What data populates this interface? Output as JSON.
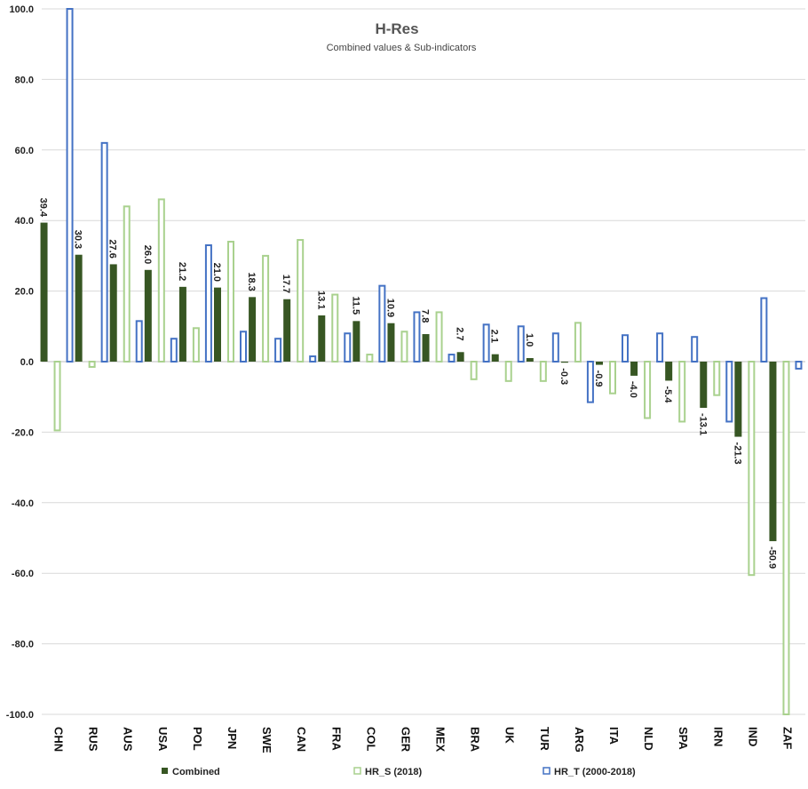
{
  "chart_data": {
    "type": "bar",
    "title": "H-Res",
    "subtitle": "Combined values & Sub-indicators",
    "xlabel": "",
    "ylabel": "",
    "ylim": [
      -100,
      100
    ],
    "yticks": [
      100,
      80,
      60,
      40,
      20,
      0,
      -20,
      -40,
      -60,
      -80,
      -100
    ],
    "ytick_labels": [
      "100.0",
      "80.0",
      "60.0",
      "40.0",
      "20.0",
      "0.0",
      "-20.0",
      "-40.0",
      "-60.0",
      "-80.0",
      "-100.0"
    ],
    "grid": true,
    "legend_position": "bottom",
    "categories": [
      "CHN",
      "RUS",
      "AUS",
      "USA",
      "POL",
      "JPN",
      "SWE",
      "CAN",
      "FRA",
      "COL",
      "GER",
      "MEX",
      "BRA",
      "UK",
      "TUR",
      "ARG",
      "ITA",
      "NLD",
      "SPA",
      "IRN",
      "IND",
      "ZAF"
    ],
    "series": [
      {
        "name": "Combined",
        "style": "filled",
        "color": "#375623",
        "values": [
          39.4,
          30.3,
          27.6,
          26.0,
          21.2,
          21.0,
          18.3,
          17.7,
          13.1,
          11.5,
          10.9,
          7.8,
          2.7,
          2.1,
          1.0,
          -0.3,
          -0.9,
          -4.0,
          -5.4,
          -13.1,
          -21.3,
          -50.9
        ],
        "labels": [
          "39.4",
          "30.3",
          "27.6",
          "26.0",
          "21.2",
          "21.0",
          "18.3",
          "17.7",
          "13.1",
          "11.5",
          "10.9",
          "7.8",
          "2.7",
          "2.1",
          "1.0",
          "-0.3",
          "-0.9",
          "-4.0",
          "-5.4",
          "-13.1",
          "-21.3",
          "-50.9"
        ]
      },
      {
        "name": "HR_S (2018)",
        "style": "outline",
        "color": "#a9d18e",
        "values": [
          -19.5,
          -1.5,
          44,
          46,
          9.5,
          34,
          30,
          34.5,
          19,
          2,
          8.5,
          14,
          -5,
          -5.5,
          -5.5,
          11,
          -9,
          -16,
          -17,
          -9.5,
          -60.5,
          -100
        ]
      },
      {
        "name": "HR_T (2000-2018)",
        "style": "outline",
        "color": "#4472c4",
        "values": [
          100,
          62,
          11.5,
          6.5,
          33,
          8.5,
          6.5,
          1.5,
          8,
          21.5,
          14,
          2,
          10.5,
          10,
          8,
          -11.5,
          7.5,
          8,
          7,
          -17,
          18,
          -2
        ]
      }
    ],
    "colors": {
      "combined": "#375623",
      "hr_s": "#a9d18e",
      "hr_t": "#4472c4",
      "grid": "#d9d9d9",
      "axis": "#bfbfbf"
    }
  }
}
